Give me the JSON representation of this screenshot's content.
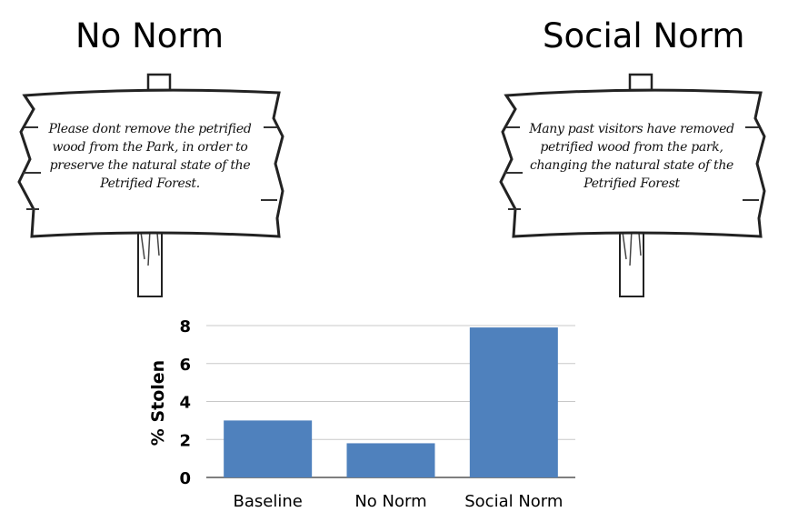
{
  "panels": [
    {
      "heading": "No Norm",
      "sign_text": "Please dont remove the petrified wood from the Park, in order to preserve the natural state of the Petrified Forest."
    },
    {
      "heading": "Social Norm",
      "sign_text": "Many past visitors have removed petrified wood from the park, changing the natural state of the Petrified Forest"
    }
  ],
  "chart_data": {
    "type": "bar",
    "categories": [
      "Baseline",
      "No Norm",
      "Social Norm"
    ],
    "values": [
      3.0,
      1.8,
      7.9
    ],
    "title": "",
    "xlabel": "",
    "ylabel": "% Stolen",
    "ylim": [
      0,
      8
    ],
    "yticks": [
      0,
      2,
      4,
      6,
      8
    ],
    "grid": true,
    "bar_color": "#4f81bd"
  }
}
